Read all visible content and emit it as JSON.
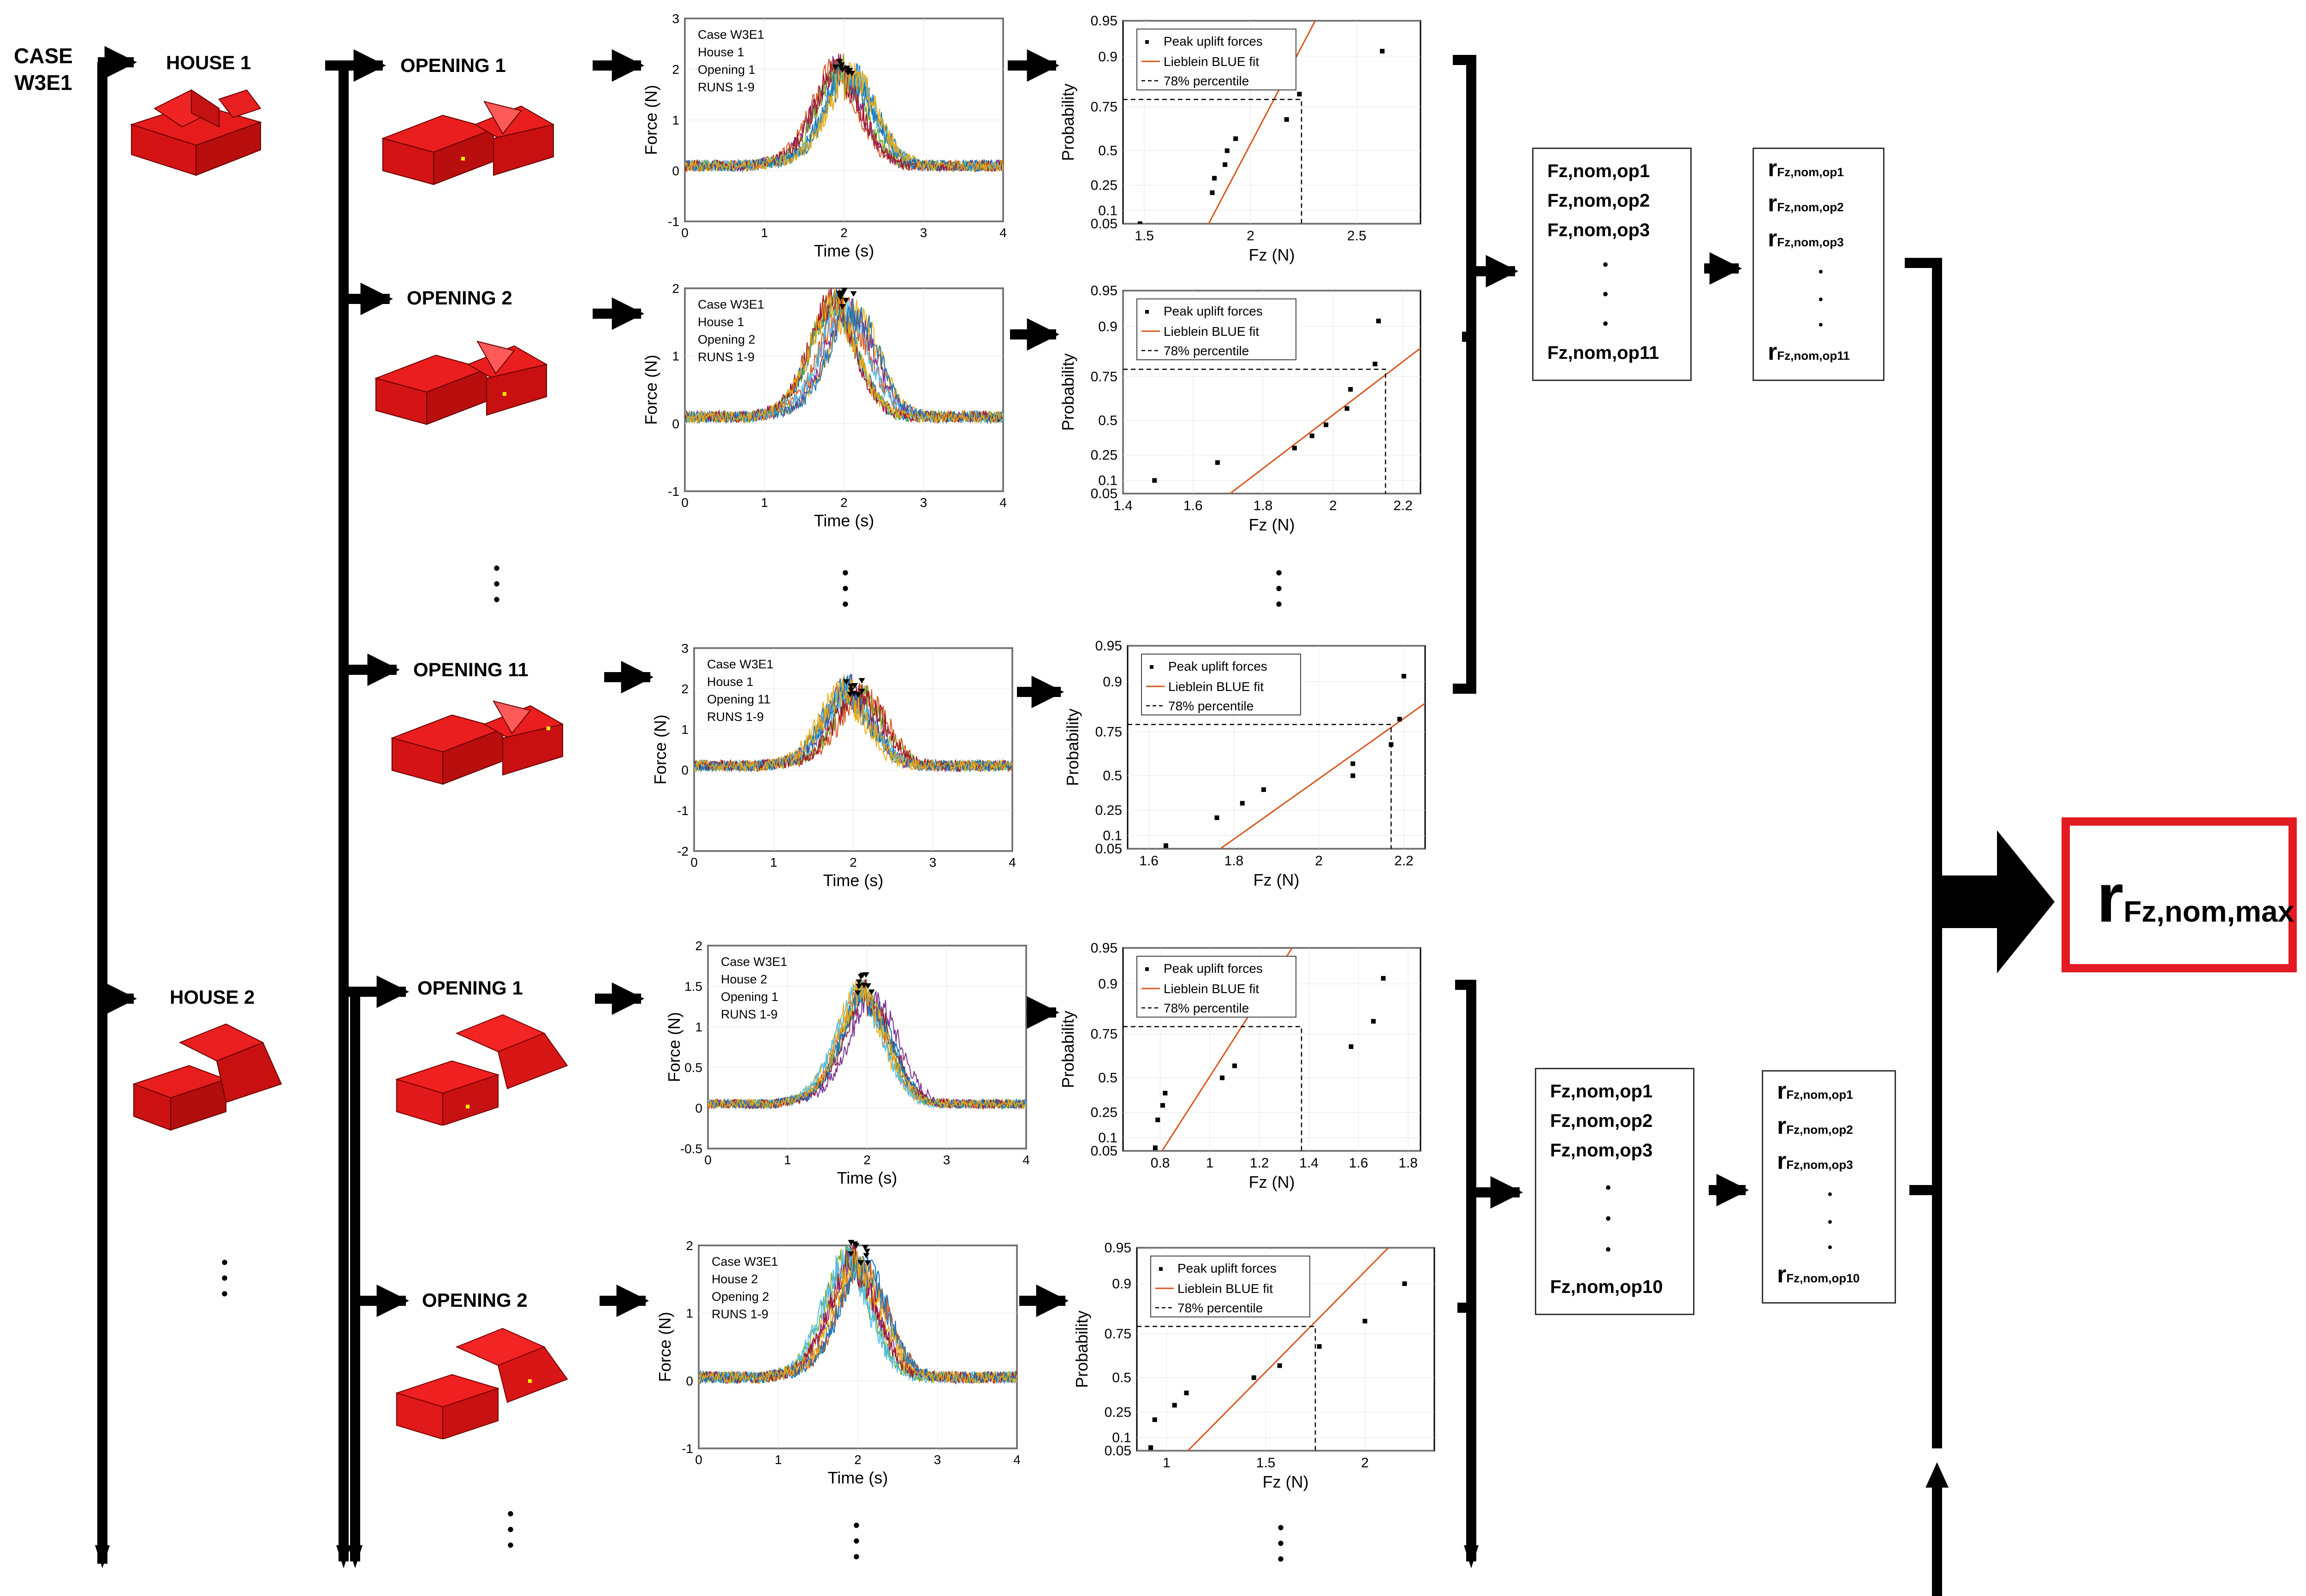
{
  "case_label": [
    "CASE",
    "W3E1"
  ],
  "houses": [
    {
      "label": "HOUSE 1"
    },
    {
      "label": "HOUSE 2"
    }
  ],
  "openings": [
    {
      "label": "OPENING 1"
    },
    {
      "label": "OPENING 2"
    },
    {
      "label": "OPENING 11"
    },
    {
      "label": "OPENING 1"
    },
    {
      "label": "OPENING 2"
    }
  ],
  "colors": {
    "house": "#dd1111",
    "house_dark": "#a80a0a",
    "house_roof": "#ee2020",
    "fit_line": "#d9541a",
    "result_border": "#e31b23"
  },
  "time_plots": [
    {
      "caption": [
        "Case W3E1",
        "House 1",
        "Opening 1",
        "RUNS 1-9"
      ],
      "ylabel": "Force (N)",
      "xlabel": "Time (s)",
      "xlim": [
        0,
        4
      ],
      "ylim": [
        -1,
        3
      ],
      "xticks": [
        "0",
        "1",
        "2",
        "3",
        "4"
      ],
      "yticks": [
        "-1",
        "0",
        "1",
        "2",
        "3"
      ],
      "peak_t": 2.0,
      "peak_f": 2.2,
      "noise": 0.45,
      "base": 0.1
    },
    {
      "caption": [
        "Case W3E1",
        "House 1",
        "Opening 2",
        "RUNS 1-9"
      ],
      "ylabel": "Force (N)",
      "xlabel": "Time (s)",
      "xlim": [
        0,
        4
      ],
      "ylim": [
        -1,
        2
      ],
      "xticks": [
        "0",
        "1",
        "2",
        "3",
        "4"
      ],
      "yticks": [
        "-1",
        "0",
        "1",
        "2"
      ],
      "peak_t": 2.0,
      "peak_f": 1.95,
      "noise": 0.35,
      "base": 0.1
    },
    {
      "caption": [
        "Case W3E1",
        "House 1",
        "Opening 11",
        "RUNS 1-9"
      ],
      "ylabel": "Force (N)",
      "xlabel": "Time (s)",
      "xlim": [
        0,
        4
      ],
      "ylim": [
        -2,
        3
      ],
      "xticks": [
        "0",
        "1",
        "2",
        "3",
        "4"
      ],
      "yticks": [
        "-2",
        "-1",
        "0",
        "1",
        "2",
        "3"
      ],
      "peak_t": 2.0,
      "peak_f": 2.1,
      "noise": 0.55,
      "base": 0.1
    },
    {
      "caption": [
        "Case W3E1",
        "House 2",
        "Opening 1",
        "RUNS 1-9"
      ],
      "ylabel": "Force (N)",
      "xlabel": "Time (s)",
      "xlim": [
        0,
        4
      ],
      "ylim": [
        -0.5,
        2
      ],
      "xticks": [
        "0",
        "1",
        "2",
        "3",
        "4"
      ],
      "yticks": [
        "-0.5",
        "0",
        "0.5",
        "1",
        "1.5",
        "2"
      ],
      "peak_t": 2.0,
      "peak_f": 1.6,
      "noise": 0.22,
      "base": 0.05
    },
    {
      "caption": [
        "Case W3E1",
        "House 2",
        "Opening 2",
        "RUNS 1-9"
      ],
      "ylabel": "Force (N)",
      "xlabel": "Time (s)",
      "xlim": [
        0,
        4
      ],
      "ylim": [
        -1,
        2
      ],
      "xticks": [
        "0",
        "1",
        "2",
        "3",
        "4"
      ],
      "yticks": [
        "-1",
        "0",
        "1",
        "2"
      ],
      "peak_t": 2.0,
      "peak_f": 2.0,
      "noise": 0.35,
      "base": 0.05
    }
  ],
  "prob_plots": [
    {
      "legend": [
        "Peak uplift forces",
        "Lieblein BLUE fit",
        "78% percentile"
      ],
      "ylabel": "Probability",
      "xlabel": "Fz (N)",
      "xlim": [
        1.4,
        2.8
      ],
      "xticks": [
        1.5,
        2,
        2.5
      ],
      "xtick_labels": [
        "1.5",
        "2",
        "2.5"
      ],
      "points": [
        [
          1.48,
          0.05
        ],
        [
          1.82,
          0.2
        ],
        [
          1.83,
          0.3
        ],
        [
          1.88,
          0.4
        ],
        [
          1.89,
          0.5
        ],
        [
          1.93,
          0.58
        ],
        [
          2.17,
          0.69
        ],
        [
          2.23,
          0.8
        ],
        [
          2.62,
          0.91
        ]
      ],
      "fit": [
        [
          1.7,
          0.0
        ],
        [
          2.79,
          1.0
        ]
      ],
      "p78_x": 2.24
    },
    {
      "legend": [
        "Peak uplift forces",
        "Lieblein BLUE fit",
        "78% percentile"
      ],
      "ylabel": "Probability",
      "xlabel": "Fz (N)",
      "xlim": [
        1.4,
        2.25
      ],
      "xticks": [
        1.4,
        1.6,
        1.8,
        2,
        2.2
      ],
      "xtick_labels": [
        "1.4",
        "1.6",
        "1.8",
        "2",
        "2.2"
      ],
      "points": [
        [
          1.49,
          0.1
        ],
        [
          1.67,
          0.2
        ],
        [
          1.89,
          0.3
        ],
        [
          1.94,
          0.39
        ],
        [
          1.98,
          0.47
        ],
        [
          2.04,
          0.58
        ],
        [
          2.05,
          0.69
        ],
        [
          2.12,
          0.8
        ],
        [
          2.13,
          0.91
        ]
      ],
      "fit": [
        [
          1.55,
          0.0
        ],
        [
          2.25,
          0.85
        ]
      ],
      "p78_x": 2.15
    },
    {
      "legend": [
        "Peak uplift forces",
        "Lieblein BLUE fit",
        "78% percentile"
      ],
      "ylabel": "Probability",
      "xlabel": "Fz (N)",
      "xlim": [
        1.55,
        2.25
      ],
      "xticks": [
        1.6,
        1.8,
        2,
        2.2
      ],
      "xtick_labels": [
        "1.6",
        "1.8",
        "2",
        "2.2"
      ],
      "points": [
        [
          1.64,
          0.06
        ],
        [
          1.76,
          0.2
        ],
        [
          1.82,
          0.3
        ],
        [
          1.87,
          0.4
        ],
        [
          2.08,
          0.5
        ],
        [
          2.08,
          0.58
        ],
        [
          2.17,
          0.69
        ],
        [
          2.19,
          0.8
        ],
        [
          2.2,
          0.91
        ]
      ],
      "fit": [
        [
          1.63,
          0.0
        ],
        [
          2.25,
          0.85
        ]
      ],
      "p78_x": 2.17
    },
    {
      "legend": [
        "Peak uplift forces",
        "Lieblein BLUE fit",
        "78% percentile"
      ],
      "ylabel": "Probability",
      "xlabel": "Fz (N)",
      "xlim": [
        0.65,
        1.85
      ],
      "xticks": [
        0.8,
        1,
        1.2,
        1.4,
        1.6,
        1.8
      ],
      "xtick_labels": [
        "0.8",
        "1",
        "1.2",
        "1.4",
        "1.6",
        "1.8"
      ],
      "points": [
        [
          0.78,
          0.06
        ],
        [
          0.79,
          0.2
        ],
        [
          0.81,
          0.3
        ],
        [
          0.82,
          0.39
        ],
        [
          1.05,
          0.5
        ],
        [
          1.1,
          0.58
        ],
        [
          1.57,
          0.69
        ],
        [
          1.66,
          0.8
        ],
        [
          1.7,
          0.91
        ]
      ],
      "fit": [
        [
          0.7,
          0.0
        ],
        [
          1.84,
          1.0
        ]
      ],
      "p78_x": 1.37
    },
    {
      "legend": [
        "Peak uplift forces",
        "Lieblein BLUE fit",
        "78% percentile"
      ],
      "ylabel": "Probability",
      "xlabel": "Fz (N)",
      "xlim": [
        0.85,
        2.35
      ],
      "xticks": [
        1,
        1.5,
        2
      ],
      "xtick_labels": [
        "1",
        "1.5",
        "2"
      ],
      "points": [
        [
          0.92,
          0.06
        ],
        [
          0.94,
          0.2
        ],
        [
          1.04,
          0.3
        ],
        [
          1.1,
          0.39
        ],
        [
          1.44,
          0.5
        ],
        [
          1.57,
          0.58
        ],
        [
          1.77,
          0.69
        ],
        [
          2.0,
          0.8
        ],
        [
          2.2,
          0.9
        ]
      ],
      "fit": [
        [
          0.9,
          0.0
        ],
        [
          2.35,
          0.98
        ]
      ],
      "p78_x": 1.75
    }
  ],
  "prob_yticks": [
    0.05,
    0.1,
    0.25,
    0.5,
    0.75,
    0.9,
    0.95
  ],
  "prob_ytick_labels": [
    "0.05",
    "0.1",
    "0.25",
    "0.5",
    "0.75",
    "0.9",
    "0.95"
  ],
  "fz_box_top": [
    "Fz,nom,op1",
    "Fz,nom,op2",
    "Fz,nom,op3",
    "Fz,nom,op11"
  ],
  "r_box_top": [
    "op1",
    "op2",
    "op3",
    "op11"
  ],
  "fz_box_bottom": [
    "Fz,nom,op1",
    "Fz,nom,op2",
    "Fz,nom,op3",
    "Fz,nom,op10"
  ],
  "r_box_bottom": [
    "op1",
    "op2",
    "op3",
    "op10"
  ],
  "r_prefix": "r",
  "r_subscript_prefix": "Fz,nom,",
  "result": {
    "r": "r",
    "subscript": "Fz,nom,max"
  },
  "ellipsis_dot": "•"
}
